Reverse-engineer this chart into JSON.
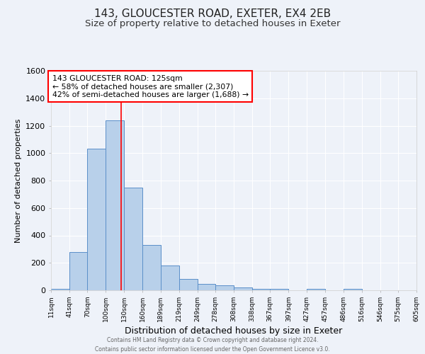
{
  "title1": "143, GLOUCESTER ROAD, EXETER, EX4 2EB",
  "title2": "Size of property relative to detached houses in Exeter",
  "xlabel": "Distribution of detached houses by size in Exeter",
  "ylabel": "Number of detached properties",
  "bin_labels": [
    "11sqm",
    "41sqm",
    "70sqm",
    "100sqm",
    "130sqm",
    "160sqm",
    "189sqm",
    "219sqm",
    "249sqm",
    "278sqm",
    "308sqm",
    "338sqm",
    "367sqm",
    "397sqm",
    "427sqm",
    "457sqm",
    "486sqm",
    "516sqm",
    "546sqm",
    "575sqm",
    "605sqm"
  ],
  "bin_edges": [
    11,
    41,
    70,
    100,
    130,
    160,
    189,
    219,
    249,
    278,
    308,
    338,
    367,
    397,
    427,
    457,
    486,
    516,
    546,
    575,
    605
  ],
  "bar_heights": [
    10,
    280,
    1030,
    1240,
    750,
    330,
    180,
    85,
    48,
    38,
    22,
    12,
    10,
    0,
    10,
    0,
    10,
    0,
    0,
    0,
    0
  ],
  "bar_color": "#b8d0ea",
  "bar_edge_color": "#5b8fc9",
  "red_line_x": 125,
  "annotation_text": "143 GLOUCESTER ROAD: 125sqm\n← 58% of detached houses are smaller (2,307)\n42% of semi-detached houses are larger (1,688) →",
  "annotation_box_color": "white",
  "annotation_box_edge": "red",
  "ylim": [
    0,
    1600
  ],
  "yticks": [
    0,
    200,
    400,
    600,
    800,
    1000,
    1200,
    1400,
    1600
  ],
  "footer1": "Contains HM Land Registry data © Crown copyright and database right 2024.",
  "footer2": "Contains public sector information licensed under the Open Government Licence v3.0.",
  "bg_color": "#eef2f9",
  "grid_color": "#ffffff",
  "title1_fontsize": 11,
  "title2_fontsize": 9.5,
  "ann_fontsize": 7.8
}
